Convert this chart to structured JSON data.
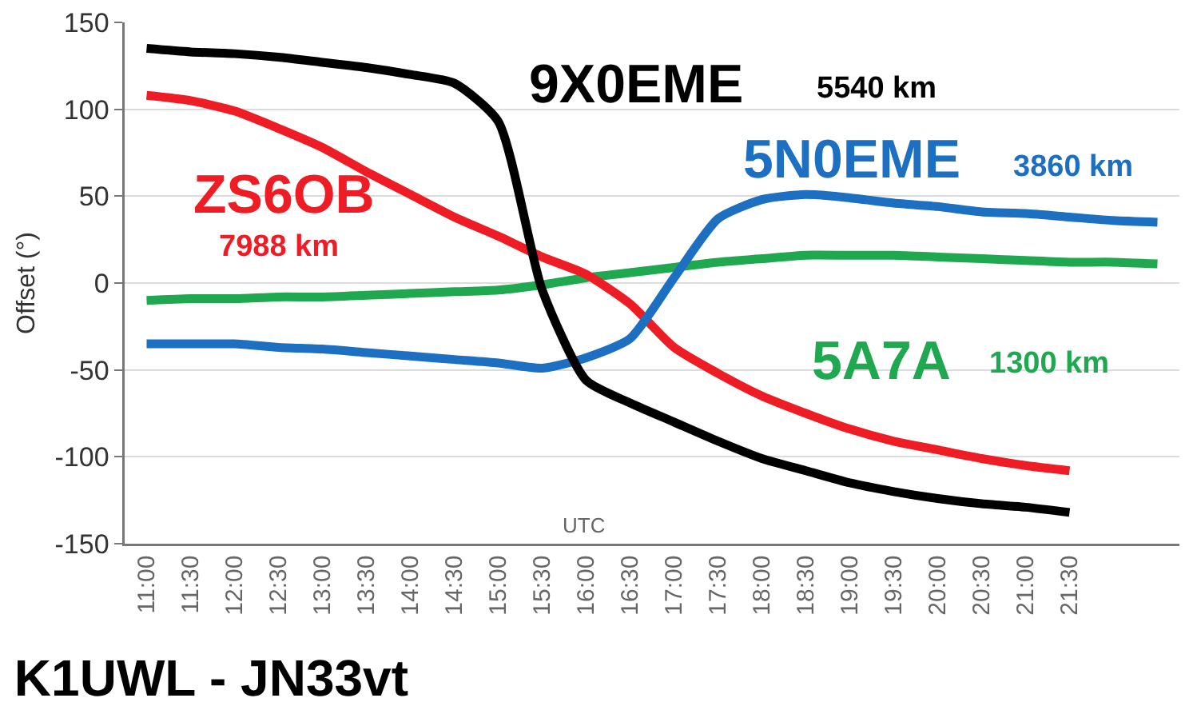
{
  "chart_data": {
    "type": "line",
    "title": "K1UWL - JN33vt",
    "xlabel": "UTC",
    "ylabel": "Offset (°)",
    "categories": [
      "11:00",
      "11:30",
      "12:00",
      "12:30",
      "13:00",
      "13:30",
      "14:00",
      "14:30",
      "15:00",
      "15:30",
      "16:00",
      "16:30",
      "17:00",
      "17:30",
      "18:00",
      "18:30",
      "19:00",
      "19:30",
      "20:00",
      "20:30",
      "21:00",
      "21:30",
      null,
      null
    ],
    "series": [
      {
        "name": "5A7A",
        "color": "#1fa84f",
        "values": [
          -10,
          -9,
          -9,
          -8,
          -8,
          -7,
          -6,
          -5,
          -4,
          -1,
          3,
          6,
          9,
          12,
          14,
          16,
          16,
          16,
          15,
          14,
          13,
          12,
          12,
          11
        ]
      },
      {
        "name": "ZS6OB",
        "color": "#ee1c25",
        "values": [
          108,
          105,
          99,
          89,
          78,
          64,
          51,
          38,
          27,
          15,
          5,
          -12,
          -37,
          -52,
          -65,
          -75,
          -84,
          -91,
          -96,
          -101,
          -105,
          -108,
          null,
          null
        ]
      },
      {
        "name": "5N0EME",
        "color": "#1c6fc1",
        "values": [
          -35,
          -35,
          -35,
          -37,
          -38,
          -40,
          -42,
          -44,
          -46,
          -49,
          -43,
          -32,
          3,
          37,
          48,
          51,
          49,
          46,
          44,
          41,
          40,
          38,
          36,
          35
        ]
      },
      {
        "name": "9X0EME",
        "color": "#000000",
        "values": [
          135,
          133,
          132,
          130,
          127,
          124,
          120,
          115,
          93,
          -4,
          -56,
          -69,
          -80,
          -91,
          -101,
          -108,
          -115,
          -120,
          -124,
          -127,
          -129,
          -132,
          null,
          null
        ]
      }
    ],
    "annotations": [
      "1300 km",
      "7988 km",
      "3860 km",
      "5540 km"
    ],
    "ylim": [
      -150,
      150
    ],
    "yticks": [
      -150,
      -100,
      -50,
      0,
      50,
      100,
      150
    ],
    "grid": "y",
    "marker": "none",
    "line_style": "solid"
  }
}
